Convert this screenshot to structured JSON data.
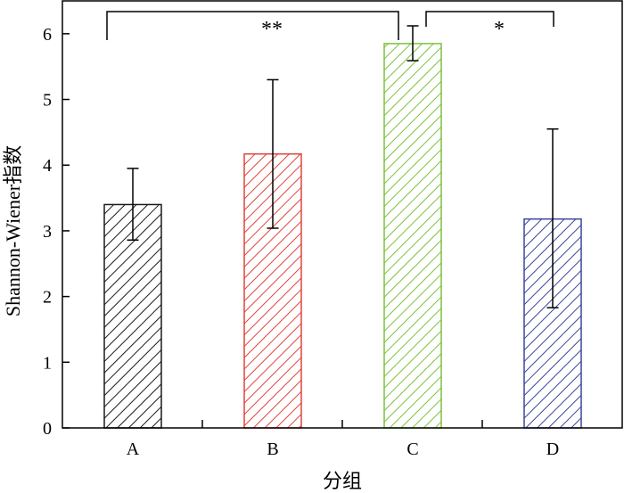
{
  "chart_data": {
    "type": "bar",
    "categories": [
      "A",
      "B",
      "C",
      "D"
    ],
    "values": [
      3.4,
      4.17,
      5.85,
      3.18
    ],
    "error_upper": [
      3.95,
      5.3,
      6.12,
      4.55
    ],
    "error_lower": [
      2.86,
      3.04,
      5.59,
      1.83
    ],
    "colors": [
      "#1a1a1a",
      "#e0443a",
      "#7cc23e",
      "#3c4699"
    ],
    "fill_pattern": "diagonal-hatch",
    "xlabel": "分组",
    "ylabel": "Shannon-Wiener指数",
    "ylim": [
      0,
      6.5
    ],
    "yticks": [
      "0",
      "1",
      "2",
      "3",
      "4",
      "5",
      "6"
    ],
    "grid": false,
    "significance": [
      {
        "from": "A",
        "to": "C",
        "label": "**"
      },
      {
        "from": "C",
        "to": "D",
        "label": "*"
      }
    ]
  }
}
